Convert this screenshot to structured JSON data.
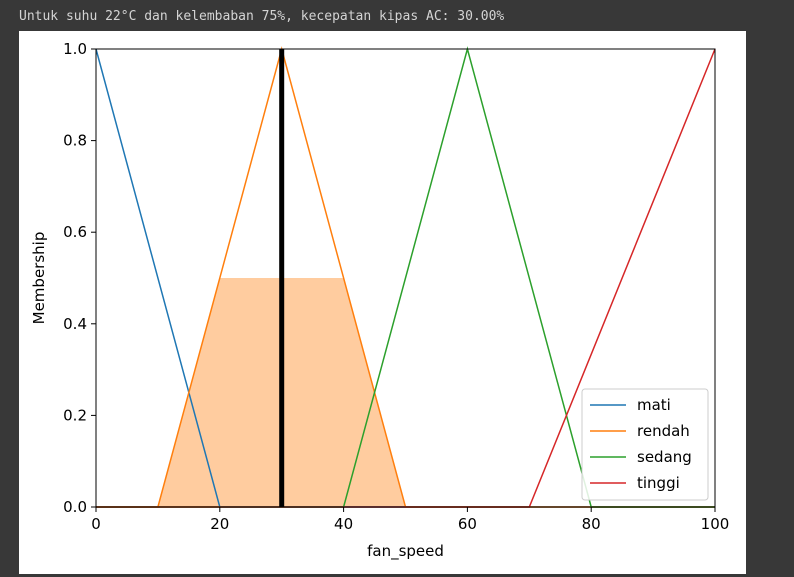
{
  "output": {
    "text": "Untuk suhu 22°C dan kelembaban 75%, kecepatan kipas AC: 30.00%"
  },
  "chart_data": {
    "type": "line",
    "title": "",
    "xlabel": "fan_speed",
    "ylabel": "Membership",
    "xlim": [
      0,
      100
    ],
    "ylim": [
      0,
      1.0
    ],
    "xticks": [
      "0",
      "20",
      "40",
      "60",
      "80",
      "100"
    ],
    "yticks": [
      "0.0",
      "0.2",
      "0.4",
      "0.6",
      "0.8",
      "1.0"
    ],
    "grid": false,
    "legend_position": "lower-right",
    "series": [
      {
        "name": "mati",
        "color": "#1f77b4",
        "x": [
          0,
          0,
          20,
          100
        ],
        "y": [
          1.0,
          1.0,
          0,
          0
        ]
      },
      {
        "name": "rendah",
        "color": "#ff7f0e",
        "x": [
          0,
          10,
          30,
          50,
          100
        ],
        "y": [
          0,
          0,
          1.0,
          0,
          0
        ]
      },
      {
        "name": "sedang",
        "color": "#2ca02c",
        "x": [
          0,
          40,
          60,
          80,
          100
        ],
        "y": [
          0,
          0,
          1.0,
          0,
          0
        ]
      },
      {
        "name": "tinggi",
        "color": "#d62728",
        "x": [
          0,
          70,
          100
        ],
        "y": [
          0,
          0,
          1.0
        ]
      }
    ],
    "aggregated_area": {
      "color": "#ff7f0e",
      "x": [
        0,
        10,
        20,
        40,
        50,
        100
      ],
      "y": [
        0,
        0,
        0.5,
        0.5,
        0,
        0
      ]
    },
    "defuzzified_line": {
      "x": 30,
      "color": "#000000",
      "ymax": 1.0
    }
  }
}
